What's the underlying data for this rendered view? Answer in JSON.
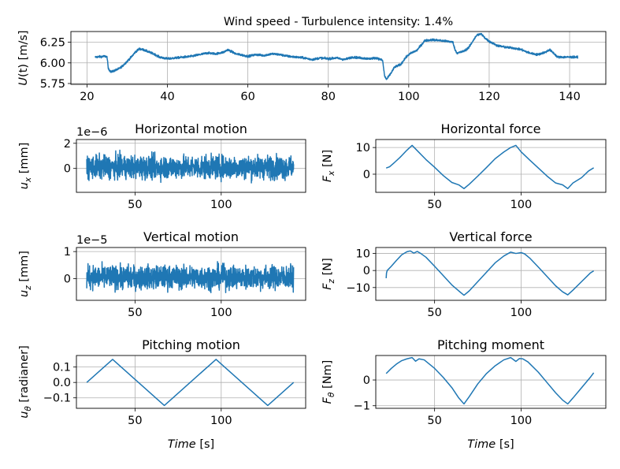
{
  "chart_data": [
    {
      "id": "wind",
      "type": "line",
      "title": "Wind speed - Turbulence intensity: 1.4%",
      "xlabel": "",
      "ylabel": "U(t) [m/s]",
      "xlim": [
        16,
        149
      ],
      "ylim": [
        5.74,
        6.38
      ],
      "xticks": [
        20,
        40,
        60,
        80,
        100,
        120,
        140
      ],
      "xtick_labels": [
        "20",
        "40",
        "60",
        "80",
        "100",
        "120",
        "140"
      ],
      "yticks": [
        5.75,
        6.0,
        6.25
      ],
      "ytick_labels": [
        "5.75",
        "6.00",
        "6.25"
      ],
      "grid": true,
      "series": [
        {
          "noise": 0.012,
          "x": [
            22,
            24.5,
            25,
            25.3,
            26,
            27,
            28,
            29,
            30,
            31,
            32,
            33,
            34,
            35,
            36,
            37,
            38,
            40,
            42,
            44,
            46,
            48,
            50,
            52,
            54,
            55,
            57,
            60,
            62,
            64,
            66,
            68,
            70,
            72,
            74,
            76,
            78,
            80,
            82,
            84,
            86,
            88,
            90,
            92,
            93.5,
            94,
            94.5,
            95.5,
            96.5,
            98,
            99,
            100,
            101,
            102,
            103,
            104,
            106,
            108,
            110,
            111,
            111.5,
            112,
            113,
            114,
            115,
            116,
            117,
            118,
            119,
            120,
            122,
            124,
            126,
            128,
            130,
            132,
            134,
            135,
            136,
            137,
            138,
            140,
            142
          ],
          "y": [
            6.07,
            6.08,
            6.07,
            5.93,
            5.89,
            5.91,
            5.93,
            5.97,
            6.02,
            6.07,
            6.13,
            6.17,
            6.16,
            6.14,
            6.12,
            6.1,
            6.07,
            6.05,
            6.06,
            6.07,
            6.08,
            6.1,
            6.12,
            6.11,
            6.13,
            6.16,
            6.11,
            6.08,
            6.1,
            6.09,
            6.11,
            6.1,
            6.08,
            6.07,
            6.06,
            6.04,
            6.06,
            6.05,
            6.06,
            6.04,
            6.07,
            6.06,
            6.05,
            6.06,
            6.03,
            5.84,
            5.8,
            5.87,
            5.95,
            5.98,
            6.05,
            6.1,
            6.13,
            6.15,
            6.21,
            6.27,
            6.28,
            6.27,
            6.26,
            6.25,
            6.16,
            6.12,
            6.13,
            6.15,
            6.19,
            6.27,
            6.34,
            6.35,
            6.3,
            6.26,
            6.21,
            6.19,
            6.18,
            6.16,
            6.12,
            6.1,
            6.13,
            6.16,
            6.12,
            6.07,
            6.07,
            6.07,
            6.07
          ]
        }
      ]
    },
    {
      "id": "ux",
      "type": "line",
      "title": "Horizontal motion",
      "xlabel": "",
      "ylabel": "u_x [mm]",
      "offset_text": "1e−6",
      "xlim": [
        16,
        149
      ],
      "ylim": [
        -1.9,
        2.3
      ],
      "xticks": [
        50,
        100
      ],
      "xtick_labels": [
        "50",
        "100"
      ],
      "yticks": [
        0,
        2
      ],
      "ytick_labels": [
        "0",
        "2"
      ],
      "grid": true,
      "series": [
        {
          "noise": 0.9,
          "x": [
            22,
            142
          ],
          "y": [
            0.1,
            0.1
          ]
        }
      ]
    },
    {
      "id": "fx",
      "type": "line",
      "title": "Horizontal force",
      "xlabel": "",
      "ylabel": "F_x [N]",
      "xlim": [
        16,
        149
      ],
      "ylim": [
        -6.8,
        13.0
      ],
      "xticks": [
        50,
        100
      ],
      "xtick_labels": [
        "50",
        "100"
      ],
      "yticks": [
        0,
        10
      ],
      "ytick_labels": [
        "0",
        "10"
      ],
      "grid": true,
      "series": [
        {
          "noise": 0.0,
          "x": [
            22,
            24,
            27,
            30,
            34,
            37,
            40,
            45,
            50,
            55,
            60,
            64,
            67,
            70,
            75,
            80,
            85,
            90,
            94,
            97,
            100,
            105,
            110,
            115,
            120,
            124,
            127,
            130,
            135,
            139,
            142
          ],
          "y": [
            2.3,
            2.8,
            4.5,
            6.3,
            9.0,
            10.8,
            8.8,
            5.5,
            2.6,
            -0.5,
            -3.1,
            -4.0,
            -5.4,
            -3.8,
            -0.7,
            2.5,
            5.8,
            8.3,
            10.0,
            10.8,
            8.4,
            5.3,
            2.3,
            -0.7,
            -3.3,
            -4.0,
            -5.4,
            -3.3,
            -1.3,
            1.2,
            2.4
          ]
        }
      ]
    },
    {
      "id": "uz",
      "type": "line",
      "title": "Vertical motion",
      "xlabel": "",
      "ylabel": "u_z [mm]",
      "offset_text": "1e−5",
      "xlim": [
        16,
        149
      ],
      "ylim": [
        -0.8,
        1.15
      ],
      "xticks": [
        50,
        100
      ],
      "xtick_labels": [
        "50",
        "100"
      ],
      "yticks": [
        0,
        1
      ],
      "ytick_labels": [
        "0",
        "1"
      ],
      "grid": true,
      "series": [
        {
          "noise": 0.42,
          "x": [
            22,
            142
          ],
          "y": [
            0.05,
            0.05
          ]
        }
      ]
    },
    {
      "id": "fz",
      "type": "line",
      "title": "Vertical force",
      "xlabel": "",
      "ylabel": "F_z [N]",
      "xlim": [
        16,
        149
      ],
      "ylim": [
        -17.5,
        13.5
      ],
      "xticks": [
        50,
        100
      ],
      "xtick_labels": [
        "50",
        "100"
      ],
      "yticks": [
        -10,
        0,
        10
      ],
      "ytick_labels": [
        "−10",
        "0",
        "10"
      ],
      "grid": true,
      "series": [
        {
          "noise": 0.0,
          "x": [
            22,
            22.2,
            22.6,
            25,
            28,
            31,
            34,
            36,
            38,
            40,
            42,
            45,
            50,
            55,
            60,
            64,
            67,
            70,
            75,
            80,
            85,
            90,
            94,
            97,
            100,
            102,
            105,
            110,
            115,
            120,
            124,
            127,
            130,
            135,
            140,
            142
          ],
          "y": [
            -4.5,
            -1.5,
            0.0,
            2.5,
            6.0,
            9.2,
            11.0,
            11.5,
            10.2,
            11.2,
            10.0,
            7.8,
            2.5,
            -3.0,
            -8.5,
            -12.0,
            -14.5,
            -12.0,
            -6.5,
            -1.0,
            4.5,
            8.5,
            10.8,
            10.0,
            10.5,
            9.8,
            7.3,
            2.0,
            -3.5,
            -9.0,
            -12.5,
            -14.3,
            -11.5,
            -6.5,
            -1.5,
            -0.2
          ]
        }
      ]
    },
    {
      "id": "utheta",
      "type": "line",
      "title": "Pitching motion",
      "xlabel": "Time [s]",
      "ylabel": "u_θ [radianer]",
      "xlim": [
        16,
        149
      ],
      "ylim": [
        -0.168,
        0.175
      ],
      "xticks": [
        50,
        100
      ],
      "xtick_labels": [
        "50",
        "100"
      ],
      "yticks": [
        -0.1,
        0.0,
        0.1
      ],
      "ytick_labels": [
        "−0.1",
        "0.0",
        "0.1"
      ],
      "grid": true,
      "series": [
        {
          "noise": 0.0,
          "x": [
            22,
            37,
            67,
            97,
            127,
            142
          ],
          "y": [
            0.0,
            0.15,
            -0.15,
            0.15,
            -0.15,
            0.0
          ]
        }
      ]
    },
    {
      "id": "ftheta",
      "type": "line",
      "title": "Pitching moment",
      "xlabel": "Time [s]",
      "ylabel": "F_θ [Nm]",
      "xlim": [
        16,
        149
      ],
      "ylim": [
        -1.1,
        0.95
      ],
      "xticks": [
        50,
        100
      ],
      "xtick_labels": [
        "50",
        "100"
      ],
      "yticks": [
        -1,
        0
      ],
      "ytick_labels": [
        "−1",
        "0"
      ],
      "grid": true,
      "series": [
        {
          "noise": 0.0,
          "x": [
            22,
            25,
            28,
            31,
            34,
            37,
            39,
            41,
            44,
            50,
            55,
            60,
            64,
            67,
            70,
            75,
            80,
            85,
            90,
            94,
            97,
            99,
            101,
            104,
            110,
            115,
            120,
            124,
            127,
            130,
            135,
            140,
            142
          ],
          "y": [
            0.25,
            0.45,
            0.62,
            0.75,
            0.82,
            0.87,
            0.73,
            0.82,
            0.78,
            0.45,
            0.1,
            -0.3,
            -0.7,
            -0.93,
            -0.65,
            -0.15,
            0.25,
            0.55,
            0.78,
            0.87,
            0.72,
            0.83,
            0.82,
            0.7,
            0.3,
            -0.1,
            -0.5,
            -0.78,
            -0.93,
            -0.7,
            -0.3,
            0.1,
            0.28
          ]
        }
      ]
    }
  ]
}
